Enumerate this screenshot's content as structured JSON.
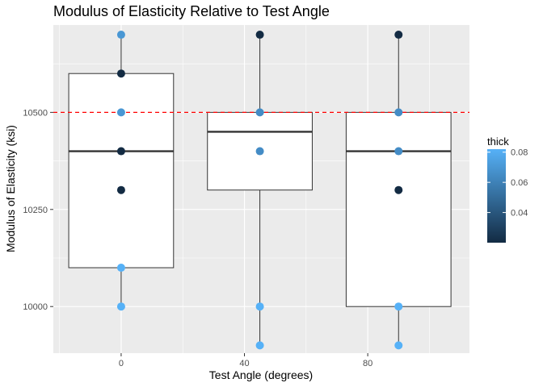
{
  "chart_data": {
    "type": "boxplot",
    "title": "Modulus of Elasticity Relative to Test Angle",
    "xlabel": "Test Angle (degrees)",
    "ylabel": "Modulus of Elasticity (ksi)",
    "xlim": [
      -22,
      113
    ],
    "ylim": [
      9880,
      10725
    ],
    "x_ticks": [
      {
        "value": 0,
        "label": "0"
      },
      {
        "value": 40,
        "label": "40"
      },
      {
        "value": 80,
        "label": "80"
      }
    ],
    "y_ticks": [
      {
        "value": 10000,
        "label": "10000"
      },
      {
        "value": 10250,
        "label": "10250"
      },
      {
        "value": 10500,
        "label": "10500"
      }
    ],
    "reference_line": {
      "y": 10500,
      "color": "#ff0000",
      "style": "dashed"
    },
    "boxes": [
      {
        "x": 0,
        "xmin": -17,
        "xmax": 17,
        "q1": 10100,
        "median": 10400,
        "q3": 10600,
        "whisker_low": 10000,
        "whisker_high": 10700
      },
      {
        "x": 45,
        "xmin": 28,
        "xmax": 62,
        "q1": 10300,
        "median": 10450,
        "q3": 10500,
        "whisker_low": 9900,
        "whisker_high": 10700
      },
      {
        "x": 90,
        "xmin": 73,
        "xmax": 107,
        "q1": 10000,
        "median": 10400,
        "q3": 10500,
        "whisker_low": 9900,
        "whisker_high": 10700
      }
    ],
    "points": [
      {
        "x": 0,
        "y": 10700,
        "thick": 0.07
      },
      {
        "x": 0,
        "y": 10600,
        "thick": 0.02
      },
      {
        "x": 0,
        "y": 10500,
        "thick": 0.07
      },
      {
        "x": 0,
        "y": 10400,
        "thick": 0.02
      },
      {
        "x": 0,
        "y": 10300,
        "thick": 0.02
      },
      {
        "x": 0,
        "y": 10100,
        "thick": 0.085
      },
      {
        "x": 0,
        "y": 10000,
        "thick": 0.085
      },
      {
        "x": 45,
        "y": 10700,
        "thick": 0.02
      },
      {
        "x": 45,
        "y": 10500,
        "thick": 0.065
      },
      {
        "x": 45,
        "y": 10400,
        "thick": 0.065
      },
      {
        "x": 45,
        "y": 10000,
        "thick": 0.085
      },
      {
        "x": 45,
        "y": 9900,
        "thick": 0.085
      },
      {
        "x": 90,
        "y": 10700,
        "thick": 0.02
      },
      {
        "x": 90,
        "y": 10500,
        "thick": 0.065
      },
      {
        "x": 90,
        "y": 10400,
        "thick": 0.065
      },
      {
        "x": 90,
        "y": 10300,
        "thick": 0.02
      },
      {
        "x": 90,
        "y": 10000,
        "thick": 0.085
      },
      {
        "x": 90,
        "y": 9900,
        "thick": 0.085
      }
    ],
    "legend": {
      "title": "thick",
      "placement": "right",
      "range": [
        0.02,
        0.082
      ],
      "ticks": [
        {
          "value": 0.04,
          "label": "0.04"
        },
        {
          "value": 0.06,
          "label": "0.06"
        },
        {
          "value": 0.08,
          "label": "0.08"
        }
      ],
      "color_low": "#132b43",
      "color_high": "#56b1f7"
    },
    "grid": true,
    "panel_color": "#ebebeb",
    "grid_color": "#ffffff"
  }
}
